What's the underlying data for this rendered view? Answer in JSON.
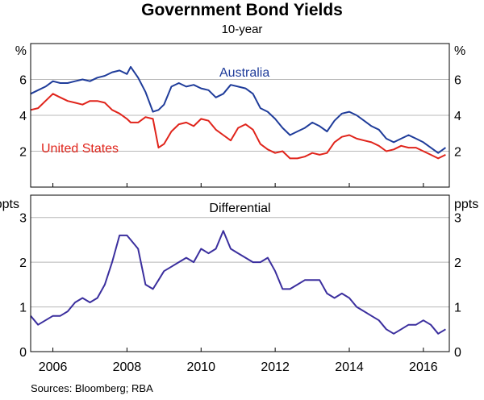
{
  "title": "Government Bond Yields",
  "subtitle": "10-year",
  "source": "Sources:  Bloomberg; RBA",
  "colors": {
    "australia": "#1f3c9a",
    "united_states": "#e0241b",
    "differential": "#3b2f9e",
    "grid": "#b8b8b8"
  },
  "chart_data": [
    {
      "type": "line",
      "panel": "top",
      "unit_left": "%",
      "unit_right": "%",
      "ylim": [
        0,
        8
      ],
      "yticks": [
        2,
        4,
        6
      ],
      "ytick_labels": [
        "2",
        "4",
        "6"
      ],
      "xlim": [
        2005.4,
        2016.7
      ],
      "series": [
        {
          "name": "Australia",
          "color": "#1f3c9a",
          "x": [
            2005.4,
            2005.6,
            2005.8,
            2006.0,
            2006.2,
            2006.4,
            2006.6,
            2006.8,
            2007.0,
            2007.2,
            2007.4,
            2007.6,
            2007.8,
            2008.0,
            2008.1,
            2008.3,
            2008.5,
            2008.7,
            2008.85,
            2009.0,
            2009.2,
            2009.4,
            2009.6,
            2009.8,
            2010.0,
            2010.2,
            2010.4,
            2010.6,
            2010.8,
            2011.0,
            2011.2,
            2011.4,
            2011.6,
            2011.8,
            2012.0,
            2012.2,
            2012.4,
            2012.6,
            2012.8,
            2013.0,
            2013.2,
            2013.4,
            2013.6,
            2013.8,
            2014.0,
            2014.2,
            2014.4,
            2014.6,
            2014.8,
            2015.0,
            2015.2,
            2015.4,
            2015.6,
            2015.8,
            2016.0,
            2016.2,
            2016.4,
            2016.6
          ],
          "values": [
            5.2,
            5.4,
            5.6,
            5.9,
            5.8,
            5.8,
            5.9,
            6.0,
            5.9,
            6.1,
            6.2,
            6.4,
            6.5,
            6.3,
            6.7,
            6.1,
            5.3,
            4.2,
            4.3,
            4.6,
            5.6,
            5.8,
            5.6,
            5.7,
            5.5,
            5.4,
            5.0,
            5.2,
            5.7,
            5.6,
            5.5,
            5.2,
            4.4,
            4.2,
            3.8,
            3.3,
            2.9,
            3.1,
            3.3,
            3.6,
            3.4,
            3.1,
            3.7,
            4.1,
            4.2,
            4.0,
            3.7,
            3.4,
            3.2,
            2.7,
            2.5,
            2.7,
            2.9,
            2.7,
            2.5,
            2.2,
            1.9,
            2.2
          ]
        },
        {
          "name": "United States",
          "color": "#e0241b",
          "x": [
            2005.4,
            2005.6,
            2005.8,
            2006.0,
            2006.2,
            2006.4,
            2006.6,
            2006.8,
            2007.0,
            2007.2,
            2007.4,
            2007.6,
            2007.8,
            2008.0,
            2008.1,
            2008.3,
            2008.5,
            2008.7,
            2008.85,
            2009.0,
            2009.2,
            2009.4,
            2009.6,
            2009.8,
            2010.0,
            2010.2,
            2010.4,
            2010.6,
            2010.8,
            2011.0,
            2011.2,
            2011.4,
            2011.6,
            2011.8,
            2012.0,
            2012.2,
            2012.4,
            2012.6,
            2012.8,
            2013.0,
            2013.2,
            2013.4,
            2013.6,
            2013.8,
            2014.0,
            2014.2,
            2014.4,
            2014.6,
            2014.8,
            2015.0,
            2015.2,
            2015.4,
            2015.6,
            2015.8,
            2016.0,
            2016.2,
            2016.4,
            2016.6
          ],
          "values": [
            4.3,
            4.4,
            4.8,
            5.2,
            5.0,
            4.8,
            4.7,
            4.6,
            4.8,
            4.8,
            4.7,
            4.3,
            4.1,
            3.8,
            3.6,
            3.6,
            3.9,
            3.8,
            2.2,
            2.4,
            3.1,
            3.5,
            3.6,
            3.4,
            3.8,
            3.7,
            3.2,
            2.9,
            2.6,
            3.3,
            3.5,
            3.2,
            2.4,
            2.1,
            1.9,
            2.0,
            1.6,
            1.6,
            1.7,
            1.9,
            1.8,
            1.9,
            2.5,
            2.8,
            2.9,
            2.7,
            2.6,
            2.5,
            2.3,
            2.0,
            2.1,
            2.3,
            2.2,
            2.2,
            2.0,
            1.8,
            1.6,
            1.8
          ]
        }
      ],
      "series_labels": [
        "Australia",
        "United States"
      ]
    },
    {
      "type": "line",
      "panel": "bottom",
      "title": "Differential",
      "unit_left": "ppts",
      "unit_right": "ppts",
      "ylim": [
        0,
        3.5
      ],
      "yticks": [
        0,
        1,
        2,
        3
      ],
      "ytick_labels": [
        "0",
        "1",
        "2",
        "3"
      ],
      "xlim": [
        2005.4,
        2016.7
      ],
      "xticks": [
        2006,
        2008,
        2010,
        2012,
        2014,
        2016
      ],
      "xtick_labels": [
        "2006",
        "2008",
        "2010",
        "2012",
        "2014",
        "2016"
      ],
      "series": [
        {
          "color": "#3b2f9e",
          "x": [
            2005.4,
            2005.6,
            2005.8,
            2006.0,
            2006.2,
            2006.4,
            2006.6,
            2006.8,
            2007.0,
            2007.2,
            2007.4,
            2007.6,
            2007.8,
            2008.0,
            2008.1,
            2008.3,
            2008.5,
            2008.7,
            2008.85,
            2009.0,
            2009.2,
            2009.4,
            2009.6,
            2009.8,
            2010.0,
            2010.2,
            2010.4,
            2010.6,
            2010.8,
            2011.0,
            2011.2,
            2011.4,
            2011.6,
            2011.8,
            2012.0,
            2012.2,
            2012.4,
            2012.6,
            2012.8,
            2013.0,
            2013.2,
            2013.4,
            2013.6,
            2013.8,
            2014.0,
            2014.2,
            2014.4,
            2014.6,
            2014.8,
            2015.0,
            2015.2,
            2015.4,
            2015.6,
            2015.8,
            2016.0,
            2016.2,
            2016.4,
            2016.6
          ],
          "values": [
            0.8,
            0.6,
            0.7,
            0.8,
            0.8,
            0.9,
            1.1,
            1.2,
            1.1,
            1.2,
            1.5,
            2.0,
            2.6,
            2.6,
            2.5,
            2.3,
            1.5,
            1.4,
            1.6,
            1.8,
            1.9,
            2.0,
            2.1,
            2.0,
            2.3,
            2.2,
            2.3,
            2.7,
            2.3,
            2.2,
            2.1,
            2.0,
            2.0,
            2.1,
            1.8,
            1.4,
            1.4,
            1.5,
            1.6,
            1.6,
            1.6,
            1.3,
            1.2,
            1.3,
            1.2,
            1.0,
            0.9,
            0.8,
            0.7,
            0.5,
            0.4,
            0.5,
            0.6,
            0.6,
            0.7,
            0.6,
            0.4,
            0.5
          ]
        }
      ]
    }
  ]
}
